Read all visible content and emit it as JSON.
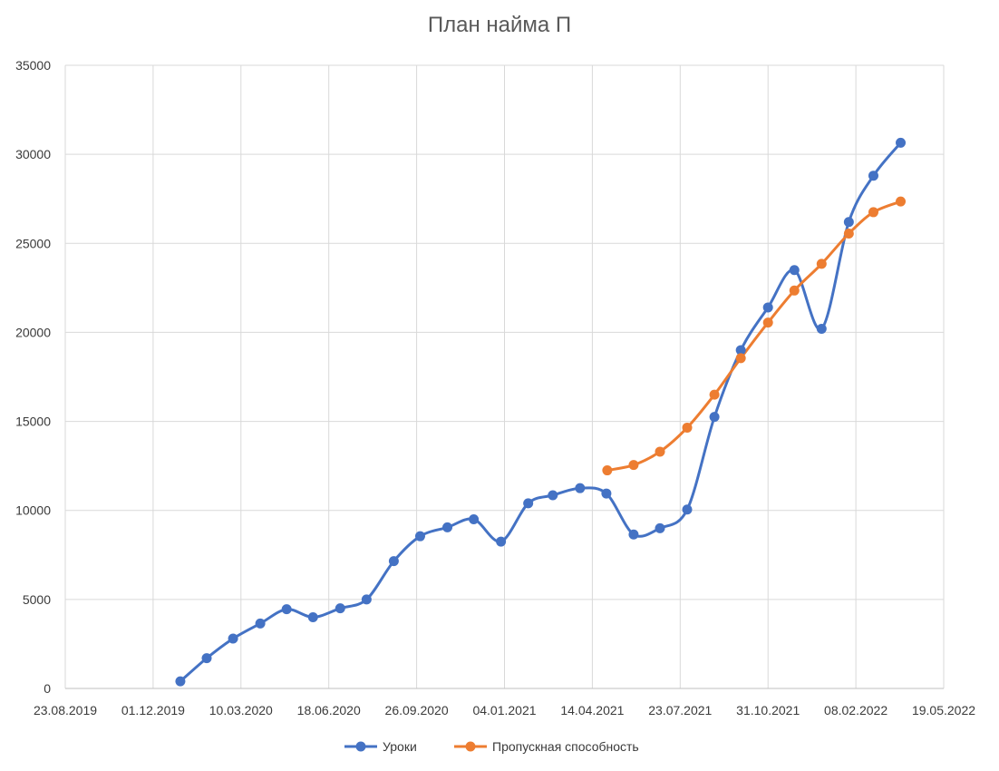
{
  "chart_data": {
    "type": "line",
    "title": "План найма П",
    "xlabel": "",
    "ylabel": "",
    "xlim": [
      "2019-08-23",
      "2022-05-19"
    ],
    "ylim": [
      0,
      35000
    ],
    "x_ticks": [
      "23.08.2019",
      "01.12.2019",
      "10.03.2020",
      "18.06.2020",
      "26.09.2020",
      "04.01.2021",
      "14.04.2021",
      "23.07.2021",
      "31.10.2021",
      "08.02.2022",
      "19.05.2022"
    ],
    "y_ticks": [
      0,
      5000,
      10000,
      15000,
      20000,
      25000,
      30000,
      35000
    ],
    "grid": true,
    "legend_position": "bottom",
    "series": [
      {
        "name": "Уроки",
        "color": "#4472C4",
        "x": [
          "2020-01-01",
          "2020-01-31",
          "2020-03-01",
          "2020-04-01",
          "2020-05-01",
          "2020-05-31",
          "2020-07-01",
          "2020-07-31",
          "2020-08-31",
          "2020-09-30",
          "2020-10-31",
          "2020-11-30",
          "2020-12-31",
          "2021-01-31",
          "2021-02-28",
          "2021-03-31",
          "2021-04-30",
          "2021-05-31",
          "2021-06-30",
          "2021-07-31",
          "2021-08-31",
          "2021-09-30",
          "2021-10-31",
          "2021-11-30",
          "2021-12-31",
          "2022-01-31",
          "2022-02-28",
          "2022-03-31"
        ],
        "values": [
          400,
          1700,
          2800,
          3650,
          4450,
          4000,
          4500,
          5000,
          7150,
          8550,
          9050,
          9500,
          8250,
          10400,
          10850,
          11250,
          10950,
          8650,
          9000,
          10050,
          15250,
          19000,
          21400,
          23500,
          20200,
          26200,
          28800,
          30650
        ]
      },
      {
        "name": "Пропускная способность",
        "color": "#ED7D31",
        "x": [
          "2021-05-01",
          "2021-05-31",
          "2021-06-30",
          "2021-07-31",
          "2021-08-31",
          "2021-09-30",
          "2021-10-31",
          "2021-11-30",
          "2021-12-31",
          "2022-01-31",
          "2022-02-28",
          "2022-03-31"
        ],
        "values": [
          12250,
          12550,
          13300,
          14650,
          16500,
          18550,
          20550,
          22350,
          23850,
          25550,
          26750,
          27350
        ]
      }
    ]
  }
}
